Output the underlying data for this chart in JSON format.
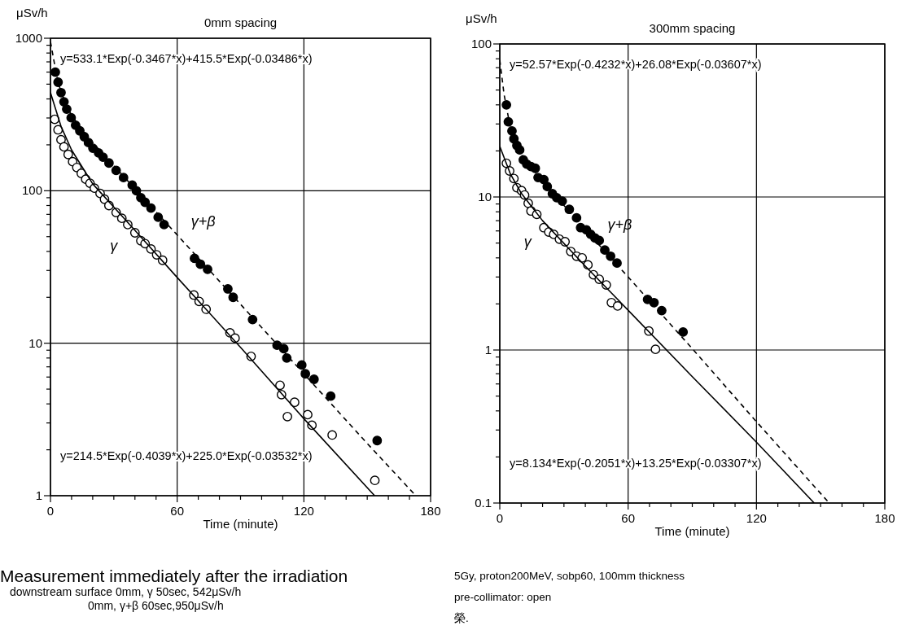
{
  "chart_data": [
    {
      "type": "scatter",
      "title": "0mm spacing",
      "xlabel": "Time (minute)",
      "ylabel": "μSv/h",
      "log": "y",
      "grid": true,
      "xlim": [
        0,
        180
      ],
      "ylim": [
        1,
        1000
      ],
      "xticks": [
        0,
        {
          "value": 10,
          "label": null
        },
        {
          "value": 20,
          "label": null
        },
        {
          "value": 30,
          "label": null
        },
        {
          "value": 40,
          "label": null
        },
        {
          "value": 50,
          "label": null
        },
        60,
        {
          "value": 70,
          "label": null
        },
        {
          "value": 80,
          "label": null
        },
        {
          "value": 90,
          "label": null
        },
        {
          "value": 100,
          "label": null
        },
        {
          "value": 110,
          "label": null
        },
        120,
        {
          "value": 130,
          "label": null
        },
        {
          "value": 140,
          "label": null
        },
        {
          "value": 150,
          "label": null
        },
        {
          "value": 160,
          "label": null
        },
        {
          "value": 170,
          "label": null
        },
        180
      ],
      "yticks": [
        1,
        {
          "value": 2,
          "label": null
        },
        {
          "value": 3,
          "label": null
        },
        {
          "value": 4,
          "label": null
        },
        {
          "value": 5,
          "label": null
        },
        {
          "value": 6,
          "label": null
        },
        {
          "value": 7,
          "label": null
        },
        {
          "value": 8,
          "label": null
        },
        {
          "value": 9,
          "label": null
        },
        10,
        {
          "value": 20,
          "label": null
        },
        {
          "value": 30,
          "label": null
        },
        {
          "value": 40,
          "label": null
        },
        {
          "value": 50,
          "label": null
        },
        {
          "value": 60,
          "label": null
        },
        {
          "value": 70,
          "label": null
        },
        {
          "value": 80,
          "label": null
        },
        {
          "value": 90,
          "label": null
        },
        100,
        {
          "value": 200,
          "label": null
        },
        {
          "value": 300,
          "label": null
        },
        {
          "value": 400,
          "label": null
        },
        {
          "value": 500,
          "label": null
        },
        {
          "value": 600,
          "label": null
        },
        {
          "value": 700,
          "label": null
        },
        {
          "value": 800,
          "label": null
        },
        {
          "value": 900,
          "label": null
        },
        1000
      ],
      "annotations": [
        "y=533.1*Exp(-0.3467*x)+415.5*Exp(-0.03486*x)",
        "y=214.5*Exp(-0.4039*x)+225.0*Exp(-0.03532*x)",
        "Measurement immediately after the irradiation",
        "downstream surface 0mm, γ 50sec, 542μSv/h",
        "0mm, γ+β 60sec,950μSv/h"
      ],
      "series": [
        {
          "name": "γ+β",
          "marker": "circle",
          "color": "#000000",
          "x": [
            2.3,
            3.6,
            5,
            6.4,
            7.7,
            9.8,
            11.9,
            13.9,
            16,
            18,
            20.1,
            22.8,
            24.9,
            27.7,
            31.1,
            34.6,
            38.7,
            40.7,
            42.8,
            44.8,
            47.6,
            51,
            53.8,
            68.2,
            71,
            74.4,
            84,
            86.5,
            95.7,
            107.3,
            110.5,
            111.9,
            119,
            120.7,
            124.8,
            132.7,
            154.7
          ],
          "values": [
            600,
            515,
            440,
            383,
            343,
            301,
            269,
            247,
            226,
            207,
            190,
            177,
            166,
            152,
            136,
            122,
            109,
            100,
            90,
            84,
            77,
            67,
            60,
            36,
            33,
            30.5,
            22.7,
            20,
            14.3,
            9.7,
            9.2,
            8.0,
            7.2,
            6.3,
            5.8,
            4.5,
            2.3
          ]
        },
        {
          "name": "γ",
          "marker": "circle",
          "color": "#ffffff",
          "x": [
            2,
            3.6,
            5,
            6.4,
            8.4,
            10.5,
            12.5,
            14.6,
            16.7,
            18.7,
            20.8,
            23.5,
            25.6,
            27.7,
            31.1,
            33.8,
            36.6,
            40,
            42.8,
            44.8,
            47.6,
            50.3,
            53.1,
            67.9,
            70.4,
            73.7,
            85,
            87.4,
            95,
            108.7,
            109.4,
            112.2,
            115.6,
            121.8,
            123.8,
            133.4,
            153.6
          ],
          "values": [
            294,
            251,
            216,
            194,
            173,
            155,
            142,
            130,
            119,
            112,
            104,
            96,
            88,
            80,
            72,
            66,
            60,
            53,
            47,
            45,
            41.5,
            38,
            35,
            20.7,
            18.8,
            16.7,
            11.7,
            10.8,
            8.2,
            5.3,
            4.6,
            3.3,
            4.1,
            3.4,
            2.9,
            2.5,
            1.26
          ]
        },
        {
          "type": "line",
          "marker": "none",
          "line_style": "dashed",
          "color": "#000000",
          "x": [
            0,
            3,
            5,
            10,
            20,
            40,
            60,
            90,
            120,
            150,
            173
          ],
          "values": [
            949,
            562,
            442,
            310,
            207,
            103,
            51.3,
            18,
            6.3,
            2.2,
            1.0
          ]
        },
        {
          "type": "line",
          "marker": "none",
          "line_style": "solid",
          "color": "#000000",
          "x": [
            0,
            5,
            10,
            20,
            40,
            60,
            90,
            120,
            153.5
          ],
          "values": [
            440,
            264,
            185,
            111,
            55,
            27,
            9.4,
            3.2,
            1.0
          ]
        }
      ]
    },
    {
      "type": "scatter",
      "title": "300mm spacing",
      "xlabel": "Time (minute)",
      "ylabel": "μSv/h",
      "log": "y",
      "grid": true,
      "xlim": [
        0,
        180
      ],
      "ylim": [
        0.1,
        100
      ],
      "xticks": [
        0,
        {
          "value": 10,
          "label": null
        },
        {
          "value": 20,
          "label": null
        },
        {
          "value": 30,
          "label": null
        },
        {
          "value": 40,
          "label": null
        },
        {
          "value": 50,
          "label": null
        },
        60,
        {
          "value": 70,
          "label": null
        },
        {
          "value": 80,
          "label": null
        },
        {
          "value": 90,
          "label": null
        },
        {
          "value": 100,
          "label": null
        },
        {
          "value": 110,
          "label": null
        },
        120,
        {
          "value": 130,
          "label": null
        },
        {
          "value": 140,
          "label": null
        },
        {
          "value": 150,
          "label": null
        },
        {
          "value": 160,
          "label": null
        },
        {
          "value": 170,
          "label": null
        },
        180
      ],
      "yticks": [
        0.1,
        {
          "value": 0.2,
          "label": null
        },
        {
          "value": 0.3,
          "label": null
        },
        {
          "value": 0.4,
          "label": null
        },
        {
          "value": 0.5,
          "label": null
        },
        {
          "value": 0.6,
          "label": null
        },
        {
          "value": 0.7,
          "label": null
        },
        {
          "value": 0.8,
          "label": null
        },
        {
          "value": 0.9,
          "label": null
        },
        1,
        {
          "value": 2,
          "label": null
        },
        {
          "value": 3,
          "label": null
        },
        {
          "value": 4,
          "label": null
        },
        {
          "value": 5,
          "label": null
        },
        {
          "value": 6,
          "label": null
        },
        {
          "value": 7,
          "label": null
        },
        {
          "value": 8,
          "label": null
        },
        {
          "value": 9,
          "label": null
        },
        10,
        {
          "value": 20,
          "label": null
        },
        {
          "value": 30,
          "label": null
        },
        {
          "value": 40,
          "label": null
        },
        {
          "value": 50,
          "label": null
        },
        {
          "value": 60,
          "label": null
        },
        {
          "value": 70,
          "label": null
        },
        {
          "value": 80,
          "label": null
        },
        {
          "value": 90,
          "label": null
        },
        100
      ],
      "annotations": [
        "y=52.57*Exp(-0.4232*x)+26.08*Exp(-0.03607*x)",
        "y=8.134*Exp(-0.2051*x)+13.25*Exp(-0.03307*x)",
        "5Gy, proton200MeV, sobp60, 100mm thickness",
        "pre-collimator: open",
        "榮."
      ],
      "series": [
        {
          "name": "γ+β",
          "marker": "circle",
          "color": "#000000",
          "x": [
            3.1,
            4,
            5.7,
            6.6,
            8,
            9.3,
            11,
            12.6,
            14.6,
            16.6,
            17.9,
            20.6,
            22.2,
            24.6,
            26.6,
            29.2,
            32.5,
            35.9,
            37.8,
            40.5,
            42.5,
            44.5,
            46.5,
            49.1,
            51.8,
            54.8,
            69.1,
            72.1,
            75.7,
            85.7
          ],
          "values": [
            40,
            31,
            27,
            24,
            21.7,
            20.3,
            17.5,
            16.4,
            15.8,
            15.4,
            13.4,
            13,
            11.7,
            10.5,
            9.9,
            9.4,
            8.3,
            7.3,
            6.3,
            6.1,
            5.7,
            5.4,
            5.2,
            4.5,
            4.1,
            3.7,
            2.14,
            2.04,
            1.81,
            1.31
          ]
        },
        {
          "name": "γ",
          "marker": "circle",
          "color": "#ffffff",
          "x": [
            3.1,
            4.6,
            6.6,
            8,
            10.2,
            11.6,
            13.3,
            14.6,
            17.3,
            20.6,
            22.9,
            25.2,
            27.9,
            30.5,
            33.2,
            35.9,
            38.5,
            41.2,
            43.8,
            46.5,
            49.8,
            52.2,
            55.1,
            69.7,
            72.8
          ],
          "values": [
            16.6,
            14.8,
            13.2,
            11.5,
            11,
            10.3,
            9.1,
            8.1,
            7.7,
            6.3,
            5.9,
            5.7,
            5.3,
            5.1,
            4.4,
            4.1,
            4.0,
            3.6,
            3.1,
            2.9,
            2.66,
            2.04,
            1.94,
            1.33,
            1.01
          ]
        },
        {
          "type": "line",
          "marker": "none",
          "line_style": "dashed",
          "color": "#000000",
          "x": [
            0,
            2,
            5,
            10,
            20,
            40,
            60,
            90,
            120,
            154
          ],
          "values": [
            78.6,
            46.8,
            28.1,
            19,
            12.7,
            6.1,
            3.0,
            1.02,
            0.34,
            0.1
          ]
        },
        {
          "type": "line",
          "marker": "none",
          "line_style": "solid",
          "color": "#000000",
          "x": [
            0,
            5,
            10,
            20,
            40,
            60,
            90,
            120,
            147
          ],
          "values": [
            21.4,
            14.1,
            10.6,
            7.0,
            3.53,
            1.82,
            0.67,
            0.25,
            0.1
          ]
        }
      ]
    }
  ]
}
